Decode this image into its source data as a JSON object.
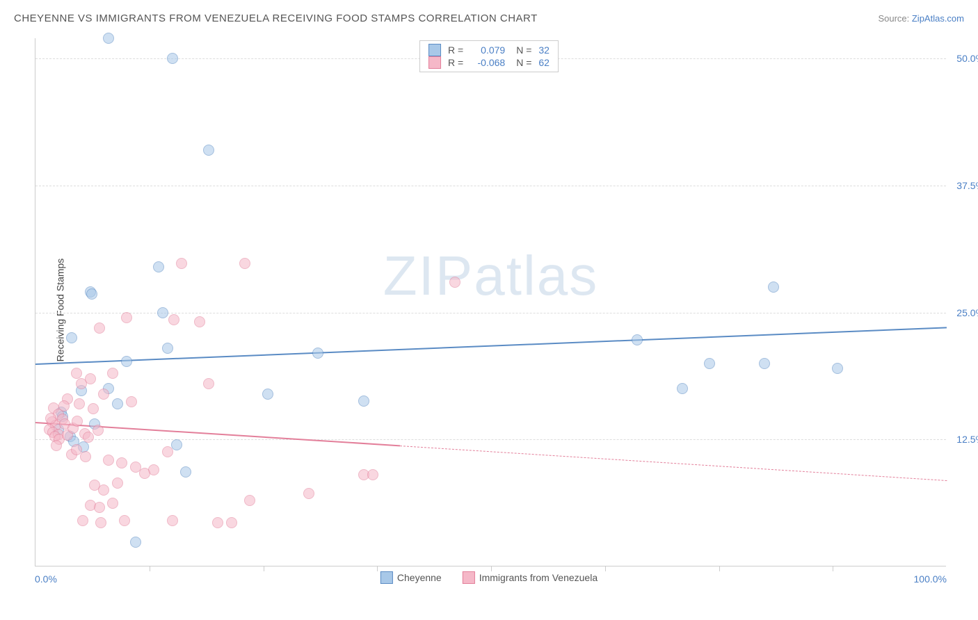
{
  "header": {
    "title": "CHEYENNE VS IMMIGRANTS FROM VENEZUELA RECEIVING FOOD STAMPS CORRELATION CHART",
    "source_prefix": "Source: ",
    "source_link": "ZipAtlas.com"
  },
  "watermark": {
    "zip": "ZIP",
    "atlas": "atlas"
  },
  "chart": {
    "type": "scatter",
    "xlim": [
      0,
      100
    ],
    "ylim": [
      0,
      52
    ],
    "x_min_label": "0.0%",
    "x_max_label": "100.0%",
    "y_ticks": [
      12.5,
      25.0,
      37.5,
      50.0
    ],
    "y_tick_labels": [
      "12.5%",
      "25.0%",
      "37.5%",
      "50.0%"
    ],
    "x_tick_positions": [
      12.5,
      25,
      37.5,
      50,
      62.5,
      75,
      87.5
    ],
    "y_axis_title": "Receiving Food Stamps",
    "background_color": "#ffffff",
    "grid_color": "#dddddd",
    "point_radius": 8,
    "point_opacity": 0.55,
    "series": [
      {
        "name": "Cheyenne",
        "fill_color": "#a8c8e8",
        "stroke_color": "#5a8bc4",
        "r_value": "0.079",
        "n_value": "32",
        "trend": {
          "y_at_x0": 20.0,
          "y_at_x100": 23.6,
          "solid_until_x": 100,
          "line_width": 2.5
        },
        "points": [
          [
            8,
            52
          ],
          [
            15,
            50
          ],
          [
            19,
            41
          ],
          [
            13.5,
            29.5
          ],
          [
            6,
            27
          ],
          [
            6.2,
            26.8
          ],
          [
            4,
            22.5
          ],
          [
            14,
            25
          ],
          [
            14.5,
            21.5
          ],
          [
            10,
            20.2
          ],
          [
            8,
            17.5
          ],
          [
            5,
            17.3
          ],
          [
            9,
            16
          ],
          [
            3.8,
            12.8
          ],
          [
            4.2,
            12.3
          ],
          [
            15.5,
            12
          ],
          [
            2.8,
            15.2
          ],
          [
            2.5,
            13.5
          ],
          [
            3,
            14.8
          ],
          [
            16.5,
            9.3
          ],
          [
            11,
            2.4
          ],
          [
            25.5,
            17
          ],
          [
            31,
            21
          ],
          [
            36,
            16.3
          ],
          [
            66,
            22.3
          ],
          [
            71,
            17.5
          ],
          [
            74,
            20
          ],
          [
            80,
            20
          ],
          [
            81,
            27.5
          ],
          [
            88,
            19.5
          ],
          [
            5.3,
            11.8
          ],
          [
            6.5,
            14
          ]
        ]
      },
      {
        "name": "Immigrants from Venezuela",
        "fill_color": "#f5b8c8",
        "stroke_color": "#e37f9a",
        "r_value": "-0.068",
        "n_value": "62",
        "trend": {
          "y_at_x0": 14.2,
          "y_at_x100": 8.5,
          "solid_until_x": 40,
          "line_width": 2
        },
        "points": [
          [
            16,
            29.8
          ],
          [
            23,
            29.8
          ],
          [
            10,
            24.5
          ],
          [
            15.2,
            24.3
          ],
          [
            7,
            23.5
          ],
          [
            18,
            24.1
          ],
          [
            4.5,
            19
          ],
          [
            2,
            15.6
          ],
          [
            2.5,
            15
          ],
          [
            3,
            14.5
          ],
          [
            1.8,
            14.2
          ],
          [
            2.2,
            13.9
          ],
          [
            1.5,
            13.5
          ],
          [
            1.9,
            13.2
          ],
          [
            2.5,
            13
          ],
          [
            3.2,
            14
          ],
          [
            5,
            18
          ],
          [
            6,
            18.5
          ],
          [
            7.5,
            17
          ],
          [
            8.5,
            19
          ],
          [
            19,
            18
          ],
          [
            8,
            10.5
          ],
          [
            9.5,
            10.2
          ],
          [
            4,
            11
          ],
          [
            4.5,
            11.5
          ],
          [
            5.5,
            10.8
          ],
          [
            6.5,
            8
          ],
          [
            7.5,
            7.5
          ],
          [
            9,
            8.2
          ],
          [
            11,
            9.8
          ],
          [
            13,
            9.5
          ],
          [
            6,
            6
          ],
          [
            7,
            5.8
          ],
          [
            8.5,
            6.2
          ],
          [
            12,
            9.2
          ],
          [
            5.2,
            4.5
          ],
          [
            7.2,
            4.3
          ],
          [
            9.8,
            4.5
          ],
          [
            15,
            4.5
          ],
          [
            20,
            4.3
          ],
          [
            21.5,
            4.3
          ],
          [
            23.5,
            6.5
          ],
          [
            30,
            7.2
          ],
          [
            36,
            9
          ],
          [
            37,
            9
          ],
          [
            46,
            28
          ],
          [
            14.5,
            11.3
          ],
          [
            3.5,
            16.5
          ],
          [
            4.8,
            16
          ],
          [
            6.3,
            15.5
          ],
          [
            2.1,
            12.8
          ],
          [
            2.6,
            12.5
          ],
          [
            3.5,
            12.9
          ],
          [
            4.1,
            13.6
          ],
          [
            5.4,
            13.1
          ],
          [
            1.7,
            14.6
          ],
          [
            2.3,
            11.9
          ],
          [
            3.1,
            15.8
          ],
          [
            4.6,
            14.3
          ],
          [
            5.8,
            12.7
          ],
          [
            6.9,
            13.4
          ],
          [
            10.5,
            16.2
          ]
        ]
      }
    ]
  },
  "legend_bottom": {
    "series1_label": "Cheyenne",
    "series2_label": "Immigrants from Venezuela"
  }
}
